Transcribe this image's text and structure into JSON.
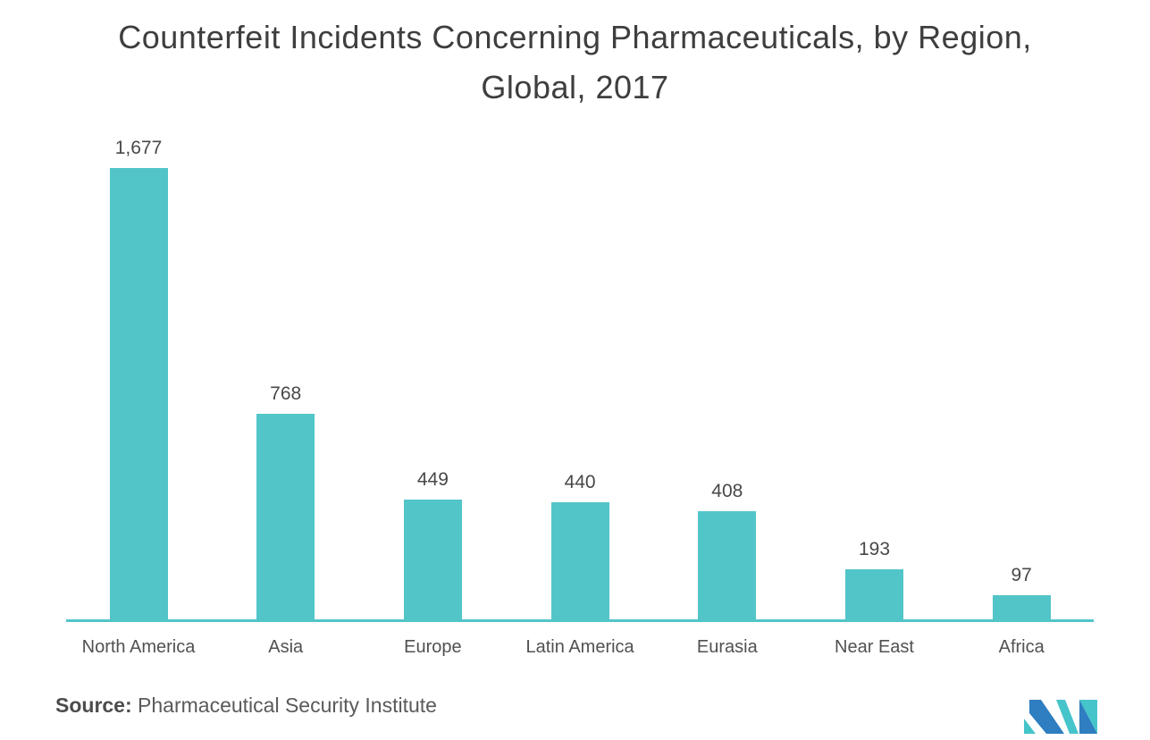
{
  "chart_data": {
    "type": "bar",
    "title": "Counterfeit Incidents Concerning Pharmaceuticals, by Region, Global, 2017",
    "title_lines": [
      "Counterfeit Incidents Concerning Pharmaceuticals, by Region,",
      "Global, 2017"
    ],
    "categories": [
      "North America",
      "Asia",
      "Europe",
      "Latin America",
      "Eurasia",
      "Near East",
      "Africa"
    ],
    "values": [
      1677,
      768,
      449,
      440,
      408,
      193,
      97
    ],
    "value_labels": [
      "1,677",
      "768",
      "449",
      "440",
      "408",
      "193",
      "97"
    ],
    "xlabel": "",
    "ylabel": "",
    "ylim": [
      0,
      1800
    ],
    "grid": false,
    "legend": "none",
    "y_axis_shown": false,
    "bar_color": "#52C5C9",
    "axis_line_color": "#52C5C9",
    "value_label_color": "#484848",
    "category_label_color": "#515151",
    "title_color": "#3e3e3e"
  },
  "source": {
    "prefix": "Source:",
    "text": "Pharmaceutical Security Institute"
  },
  "branding": {
    "logo": "mordor-intelligence-mark",
    "logo_blue": "#2E7EC1",
    "logo_teal": "#45C4CA"
  }
}
